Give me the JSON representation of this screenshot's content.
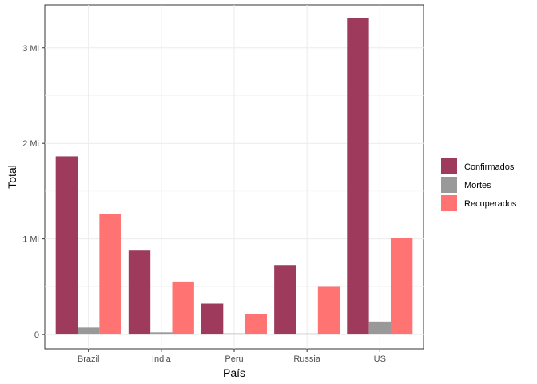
{
  "chart_data": {
    "type": "bar",
    "xlabel": "País",
    "ylabel": "Total",
    "categories": [
      "Brazil",
      "India",
      "Peru",
      "Russia",
      "US"
    ],
    "ylim": [
      -150000,
      3450000
    ],
    "yticks": [
      0,
      1000000,
      2000000,
      3000000
    ],
    "ytick_labels": [
      "0",
      "1 Mi",
      "2 Mi",
      "3 Mi"
    ],
    "grid": true,
    "legend_position": "right",
    "series": [
      {
        "name": "Confirmados",
        "color": "#9e3a5c",
        "values": [
          1864000,
          878000,
          323000,
          727000,
          3308000
        ]
      },
      {
        "name": "Mortes",
        "color": "#999999",
        "values": [
          73000,
          23000,
          12000,
          11000,
          136000
        ]
      },
      {
        "name": "Recuperados",
        "color": "#ff7373",
        "values": [
          1265000,
          554000,
          215000,
          499000,
          1007000
        ]
      }
    ]
  }
}
